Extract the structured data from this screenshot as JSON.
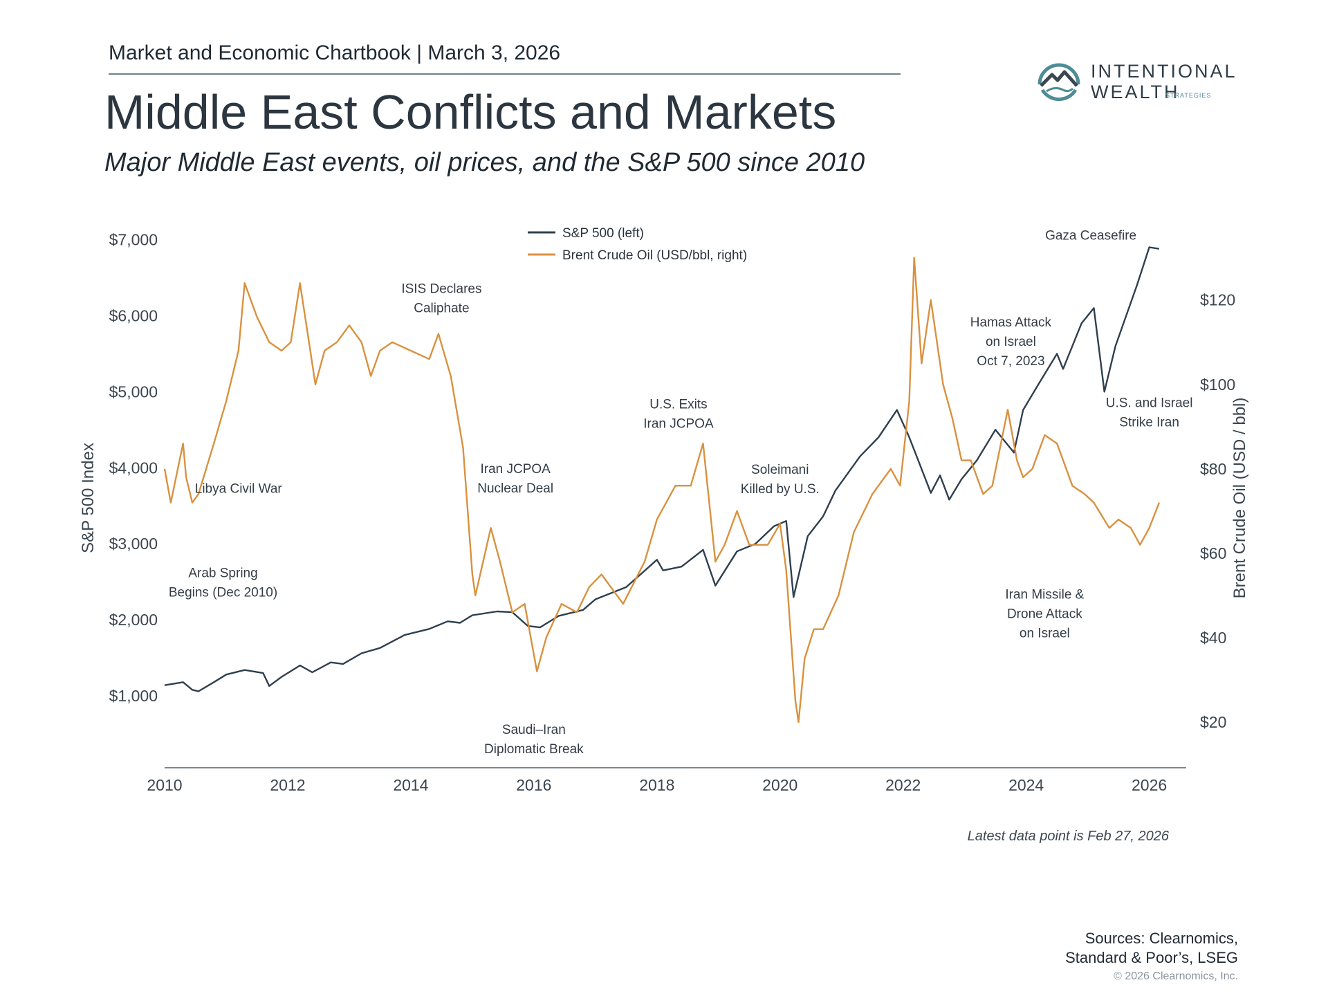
{
  "header": {
    "chartbook": "Market and Economic Chartbook | March 3, 2026",
    "title": "Middle East Conflicts and Markets",
    "subtitle": "Major Middle East events, oil prices, and the S&P 500 since 2010"
  },
  "logo": {
    "line1": "INTENTIONAL",
    "line2": "WEALTH",
    "line3": "STRATEGIES",
    "icon": "mountain-circle-logo-icon"
  },
  "colors": {
    "sp500": "#2f3f4e",
    "oil": "#d9913f",
    "logo": "#4e8c96"
  },
  "chart_data": {
    "type": "line",
    "title": "",
    "legend": [
      "S&P 500 (left)",
      "Brent Crude Oil (USD/bbl, right)"
    ],
    "legend_position": "top-center",
    "grid": false,
    "x_ticks": [
      "2010",
      "2012",
      "2014",
      "2016",
      "2018",
      "2020",
      "2022",
      "2024",
      "2026"
    ],
    "xlim": [
      2010,
      2026.6
    ],
    "left_axis": {
      "label": "S&P 500 Index",
      "ticks": [
        "$1,000",
        "$2,000",
        "$3,000",
        "$4,000",
        "$5,000",
        "$6,000",
        "$7,000"
      ],
      "tick_values": [
        1000,
        2000,
        3000,
        4000,
        5000,
        6000,
        7000
      ],
      "ylim": [
        100,
        7150
      ]
    },
    "right_axis": {
      "label": "Brent Crude Oil (USD / bbl)",
      "ticks": [
        "$20",
        "$40",
        "$60",
        "$80",
        "$100",
        "$120"
      ],
      "tick_values": [
        20,
        40,
        60,
        80,
        100,
        120
      ],
      "ylim": [
        10,
        137
      ]
    },
    "series": [
      {
        "name": "S&P 500 (left)",
        "axis": "left",
        "x": [
          2010.0,
          2010.3,
          2010.45,
          2010.55,
          2010.8,
          2011.0,
          2011.3,
          2011.6,
          2011.7,
          2011.9,
          2012.2,
          2012.4,
          2012.7,
          2012.9,
          2013.2,
          2013.5,
          2013.9,
          2014.3,
          2014.6,
          2014.8,
          2015.0,
          2015.4,
          2015.65,
          2015.9,
          2016.1,
          2016.4,
          2016.8,
          2017.0,
          2017.5,
          2018.0,
          2018.1,
          2018.4,
          2018.75,
          2018.95,
          2019.3,
          2019.6,
          2019.9,
          2020.1,
          2020.22,
          2020.45,
          2020.7,
          2020.9,
          2021.3,
          2021.6,
          2021.9,
          2022.1,
          2022.45,
          2022.6,
          2022.75,
          2022.95,
          2023.2,
          2023.5,
          2023.8,
          2023.95,
          2024.2,
          2024.5,
          2024.6,
          2024.9,
          2025.1,
          2025.27,
          2025.45,
          2025.8,
          2026.0,
          2026.16
        ],
        "values": [
          1140,
          1180,
          1080,
          1060,
          1180,
          1280,
          1340,
          1300,
          1130,
          1250,
          1400,
          1310,
          1440,
          1420,
          1560,
          1630,
          1800,
          1880,
          1980,
          1960,
          2060,
          2110,
          2100,
          1920,
          1900,
          2050,
          2130,
          2270,
          2430,
          2790,
          2650,
          2700,
          2920,
          2450,
          2900,
          3000,
          3230,
          3300,
          2300,
          3100,
          3360,
          3700,
          4150,
          4400,
          4760,
          4400,
          3670,
          3900,
          3580,
          3850,
          4100,
          4500,
          4200,
          4760,
          5100,
          5500,
          5300,
          5900,
          6100,
          5000,
          5600,
          6400,
          6900,
          6880
        ]
      },
      {
        "name": "Brent Crude Oil (USD/bbl, right)",
        "axis": "right",
        "x": [
          2010.0,
          2010.1,
          2010.3,
          2010.35,
          2010.45,
          2010.55,
          2010.8,
          2011.0,
          2011.2,
          2011.3,
          2011.5,
          2011.7,
          2011.9,
          2012.05,
          2012.2,
          2012.45,
          2012.6,
          2012.8,
          2013.0,
          2013.2,
          2013.35,
          2013.5,
          2013.7,
          2014.0,
          2014.3,
          2014.45,
          2014.65,
          2014.85,
          2015.0,
          2015.05,
          2015.3,
          2015.45,
          2015.65,
          2015.85,
          2016.05,
          2016.2,
          2016.45,
          2016.7,
          2016.9,
          2017.1,
          2017.45,
          2017.8,
          2018.0,
          2018.3,
          2018.55,
          2018.75,
          2018.95,
          2019.1,
          2019.3,
          2019.5,
          2019.8,
          2020.0,
          2020.1,
          2020.25,
          2020.3,
          2020.4,
          2020.55,
          2020.7,
          2020.95,
          2021.2,
          2021.5,
          2021.8,
          2021.95,
          2022.1,
          2022.18,
          2022.3,
          2022.45,
          2022.65,
          2022.8,
          2022.95,
          2023.1,
          2023.3,
          2023.45,
          2023.7,
          2023.85,
          2023.95,
          2024.1,
          2024.3,
          2024.5,
          2024.75,
          2024.95,
          2025.1,
          2025.35,
          2025.5,
          2025.7,
          2025.85,
          2026.0,
          2026.16
        ],
        "values": [
          80,
          72,
          86,
          78,
          72,
          74,
          86,
          96,
          108,
          124,
          116,
          110,
          108,
          110,
          124,
          100,
          108,
          110,
          114,
          110,
          102,
          108,
          110,
          108,
          106,
          112,
          102,
          85,
          55,
          50,
          66,
          58,
          46,
          48,
          32,
          40,
          48,
          46,
          52,
          55,
          48,
          58,
          68,
          76,
          76,
          86,
          58,
          62,
          70,
          62,
          62,
          67,
          56,
          25,
          20,
          35,
          42,
          42,
          50,
          65,
          74,
          80,
          76,
          96,
          130,
          105,
          120,
          100,
          92,
          82,
          82,
          74,
          76,
          94,
          82,
          78,
          80,
          88,
          86,
          76,
          74,
          72,
          66,
          68,
          66,
          62,
          66,
          72
        ]
      }
    ],
    "annotations": [
      {
        "lines": [
          "Arab Spring",
          "Begins (Dec 2010)"
        ],
        "x": 2010.95,
        "y": 2560
      },
      {
        "lines": [
          "Libya Civil War"
        ],
        "x": 2011.2,
        "y": 3670
      },
      {
        "lines": [
          "ISIS Declares",
          "Caliphate"
        ],
        "x": 2014.5,
        "y": 6300
      },
      {
        "lines": [
          "Iran JCPOA",
          "Nuclear Deal"
        ],
        "x": 2015.7,
        "y": 3930
      },
      {
        "lines": [
          "Saudi–Iran",
          "Diplomatic Break"
        ],
        "x": 2016.0,
        "y": 500
      },
      {
        "lines": [
          "U.S. Exits",
          "Iran JCPOA"
        ],
        "x": 2018.35,
        "y": 4780
      },
      {
        "lines": [
          "Soleimani",
          "Killed by U.S."
        ],
        "x": 2020.0,
        "y": 3920
      },
      {
        "lines": [
          "Hamas Attack",
          "on Israel",
          "Oct 7, 2023"
        ],
        "x": 2023.75,
        "y": 5860
      },
      {
        "lines": [
          "Iran Missile &",
          "Drone Attack",
          "on Israel"
        ],
        "x": 2024.3,
        "y": 2280
      },
      {
        "lines": [
          "Gaza Ceasefire"
        ],
        "x": 2025.05,
        "y": 7000
      },
      {
        "lines": [
          "U.S. and Israel",
          "Strike Iran"
        ],
        "x": 2026.0,
        "y": 4800
      }
    ]
  },
  "footnote": "Latest data point is Feb 27, 2026",
  "sources": {
    "line1": "Sources: Clearnomics,",
    "line2": "Standard & Poor’s, LSEG",
    "copyright": "© 2026 Clearnomics, Inc."
  }
}
